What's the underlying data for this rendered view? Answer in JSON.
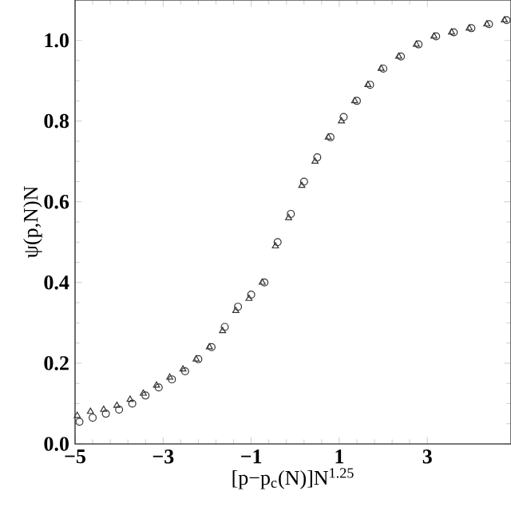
{
  "chart_data": {
    "type": "scatter",
    "xlabel": "[p−p$_{c}$(N)]N$^{1.25}$",
    "ylabel": "ψ(p,N)N",
    "xlim": [
      -5,
      4.9
    ],
    "ylim": [
      0,
      1.1
    ],
    "xticks": [
      {
        "value": -5,
        "label": "−5"
      },
      {
        "value": -3,
        "label": "−3"
      },
      {
        "value": -1,
        "label": "−1"
      },
      1,
      3
    ],
    "yticks": [
      {
        "value": 0,
        "label": "0.0"
      },
      {
        "value": 0.2,
        "label": "0.2"
      },
      {
        "value": 0.4,
        "label": "0.4"
      },
      {
        "value": 0.6,
        "label": "0.6"
      },
      {
        "value": 0.8,
        "label": "0.8"
      },
      {
        "value": 1.0,
        "label": "1.0"
      }
    ],
    "grid": false,
    "series": [
      {
        "color": "#333333",
        "marker": "circle",
        "x": [
          -4.9,
          -4.6,
          -4.3,
          -4.0,
          -3.7,
          -3.4,
          -3.1,
          -2.8,
          -2.5,
          -2.2,
          -1.9,
          -1.6,
          -1.3,
          -1.0,
          -0.7,
          -0.4,
          -0.1,
          0.2,
          0.5,
          0.8,
          1.1,
          1.4,
          1.7,
          2.0,
          2.4,
          2.8,
          3.2,
          3.6,
          4.0,
          4.4,
          4.8
        ],
        "values": [
          0.055,
          0.065,
          0.075,
          0.085,
          0.1,
          0.12,
          0.14,
          0.16,
          0.18,
          0.21,
          0.24,
          0.29,
          0.34,
          0.37,
          0.4,
          0.5,
          0.57,
          0.65,
          0.71,
          0.76,
          0.81,
          0.85,
          0.89,
          0.93,
          0.96,
          0.99,
          1.01,
          1.02,
          1.03,
          1.04,
          1.05
        ]
      },
      {
        "color": "#333333",
        "marker": "triangle",
        "x": [
          -4.95,
          -4.65,
          -4.35,
          -4.05,
          -3.75,
          -3.45,
          -3.15,
          -2.85,
          -2.55,
          -2.25,
          -1.95,
          -1.65,
          -1.35,
          -1.05,
          -0.75,
          -0.45,
          -0.15,
          0.15,
          0.45,
          0.75,
          1.05,
          1.35,
          1.65,
          1.95,
          2.35,
          2.75,
          3.15,
          3.55,
          3.95,
          4.35,
          4.75
        ],
        "values": [
          0.07,
          0.08,
          0.085,
          0.095,
          0.11,
          0.125,
          0.145,
          0.165,
          0.185,
          0.21,
          0.24,
          0.28,
          0.33,
          0.36,
          0.4,
          0.49,
          0.56,
          0.64,
          0.7,
          0.76,
          0.8,
          0.85,
          0.89,
          0.93,
          0.96,
          0.99,
          1.01,
          1.02,
          1.03,
          1.04,
          1.05
        ]
      }
    ]
  }
}
